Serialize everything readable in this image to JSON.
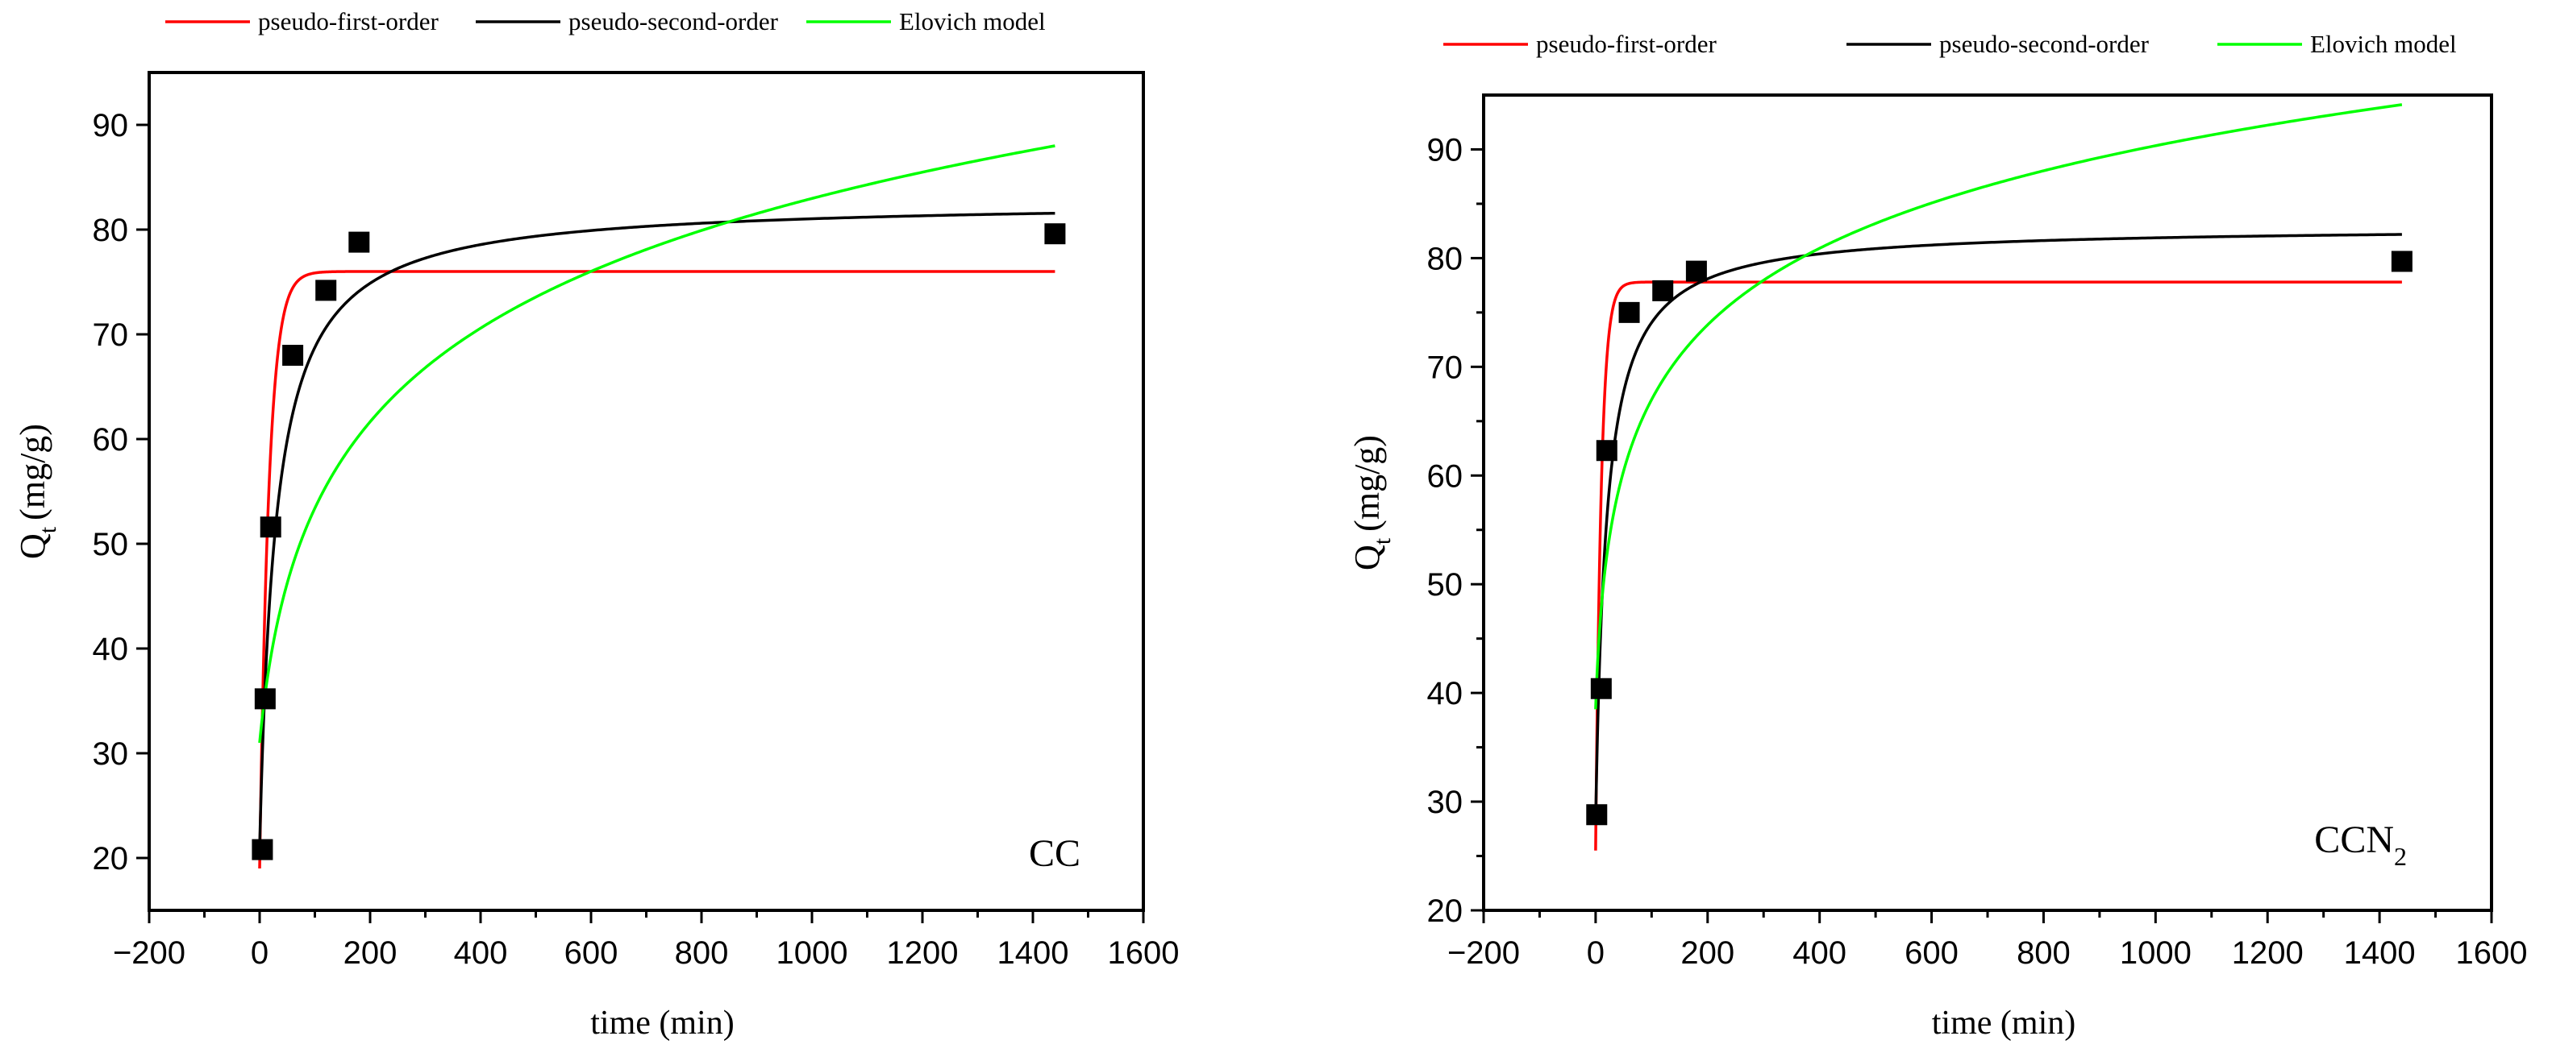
{
  "colors": {
    "pseudo_first_order": "#ff0000",
    "pseudo_second_order": "#000000",
    "elovich": "#00ff00",
    "points": "#000000",
    "axis": "#000000",
    "background": "#ffffff"
  },
  "chart_data": [
    {
      "type": "scatter",
      "panel": "left",
      "annotation": "CC",
      "annotation_sub": "",
      "xlabel": "time (min)",
      "ylabel_main": "Q",
      "ylabel_sub": "t",
      "ylabel_unit": "(mg/g)",
      "xlim": [
        -200,
        1600
      ],
      "ylim": [
        15,
        95
      ],
      "x_ticks": [
        -200,
        0,
        200,
        400,
        600,
        800,
        1000,
        1200,
        1400,
        1600
      ],
      "x_tick_labels": [
        "−200",
        "0",
        "200",
        "400",
        "600",
        "800",
        "1000",
        "1200",
        "1400",
        "1600"
      ],
      "y_ticks": [
        20,
        30,
        40,
        50,
        60,
        70,
        80,
        90
      ],
      "y_tick_labels": [
        "20",
        "30",
        "40",
        "50",
        "60",
        "70",
        "80",
        "90"
      ],
      "legend": [
        "pseudo-first-order",
        "pseudo-second-order",
        "Elovich model"
      ],
      "legend_position": "top",
      "series": [
        {
          "name": "pseudo-first-order",
          "model": "pfo",
          "params": {
            "qe": 76.0,
            "k1": 0.06,
            "q0": 19.0
          }
        },
        {
          "name": "pseudo-second-order",
          "model": "pso",
          "params": {
            "qe": 82.8,
            "k2": 0.00055,
            "q0": 21.0
          }
        },
        {
          "name": "Elovich model",
          "model": "elovich",
          "params": {
            "a": 0.55,
            "b": 0.071,
            "q0": 31.0
          }
        }
      ],
      "points": {
        "x": [
          5,
          10,
          20,
          60,
          120,
          180,
          1440
        ],
        "y": [
          20.8,
          35.2,
          51.6,
          68.0,
          74.2,
          78.8,
          79.6
        ]
      }
    },
    {
      "type": "scatter",
      "panel": "right",
      "annotation": "CCN",
      "annotation_sub": "2",
      "xlabel": "time (min)",
      "ylabel_main": "Q",
      "ylabel_sub": "t",
      "ylabel_unit": "(mg/g)",
      "xlim": [
        -200,
        1600
      ],
      "ylim": [
        20,
        95
      ],
      "x_ticks": [
        -200,
        0,
        200,
        400,
        600,
        800,
        1000,
        1200,
        1400,
        1600
      ],
      "x_tick_labels": [
        "−200",
        "0",
        "200",
        "400",
        "600",
        "800",
        "1000",
        "1200",
        "1400",
        "1600"
      ],
      "y_ticks": [
        20,
        30,
        40,
        50,
        60,
        70,
        80,
        90
      ],
      "y_tick_labels": [
        "20",
        "30",
        "40",
        "50",
        "60",
        "70",
        "80",
        "90"
      ],
      "legend": [
        "pseudo-first-order",
        "pseudo-second-order",
        "Elovich model"
      ],
      "legend_position": "top",
      "series": [
        {
          "name": "pseudo-first-order",
          "model": "pfo",
          "params": {
            "qe": 77.8,
            "k1": 0.1,
            "q0": 25.5
          }
        },
        {
          "name": "pseudo-second-order",
          "model": "pso",
          "params": {
            "qe": 82.9,
            "k2": 0.00095,
            "q0": 28.0
          }
        },
        {
          "name": "Elovich model",
          "model": "elovich",
          "params": {
            "a": 1.5,
            "b": 0.096,
            "q0": 38.5
          }
        }
      ],
      "points": {
        "x": [
          2,
          10,
          20,
          60,
          120,
          180,
          1440
        ],
        "y": [
          28.8,
          40.4,
          62.3,
          75.0,
          77.0,
          78.8,
          79.7
        ]
      }
    }
  ]
}
